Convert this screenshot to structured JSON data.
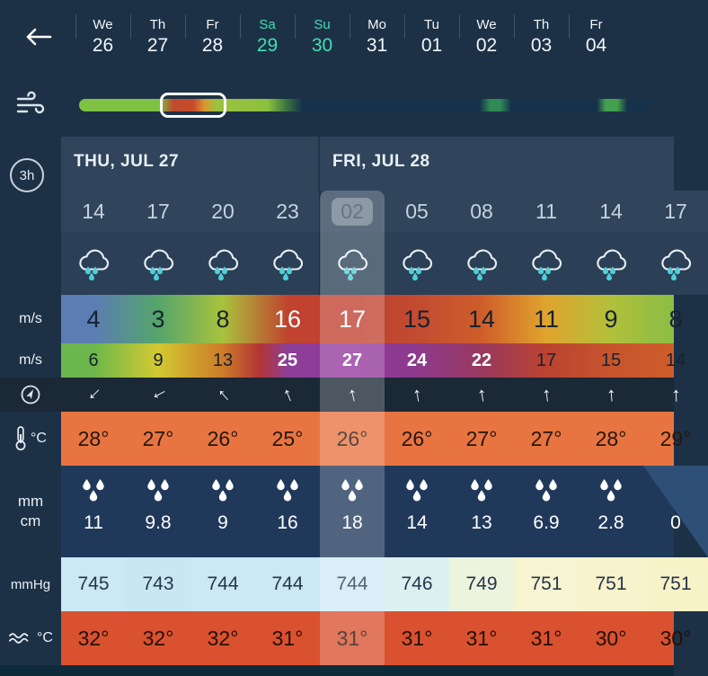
{
  "topbar": {
    "back_icon": "arrow-left",
    "days": [
      {
        "day": "We",
        "date": "26",
        "weekend": false
      },
      {
        "day": "Th",
        "date": "27",
        "weekend": false
      },
      {
        "day": "Fr",
        "date": "28",
        "weekend": false
      },
      {
        "day": "Sa",
        "date": "29",
        "weekend": true
      },
      {
        "day": "Su",
        "date": "30",
        "weekend": true
      },
      {
        "day": "Mo",
        "date": "31",
        "weekend": false
      },
      {
        "day": "Tu",
        "date": "01",
        "weekend": false
      },
      {
        "day": "We",
        "date": "02",
        "weekend": false
      },
      {
        "day": "Th",
        "date": "03",
        "weekend": false
      },
      {
        "day": "Fr",
        "date": "04",
        "weekend": false
      }
    ]
  },
  "icons": {
    "wind": "wind-gust-icon",
    "weather": "cloud-rain-icon",
    "precip": "raindrops-icon",
    "direction": "compass-icon",
    "temperature": "thermometer-icon",
    "water": "waves-icon",
    "arrow_glyph": "↑"
  },
  "table": {
    "interval": "3h",
    "groups": [
      {
        "title": "THU, JUL 27",
        "span": 4
      },
      {
        "title": "FRI, JUL 28",
        "span": 6
      }
    ],
    "row_labels": {
      "speed": "m/s",
      "gust": "m/s",
      "temp": "°C",
      "precip_top": "mm",
      "precip_bottom": "cm",
      "pressure": "mmHg",
      "water": "°C"
    },
    "columns": [
      {
        "time": "14",
        "speed": "4",
        "speed_fg": "#17222e",
        "gust": "6",
        "gust_fg": "#17222e",
        "gust_bold": false,
        "dir_deg": 225,
        "temp": "28°",
        "precip": "11",
        "drops": true,
        "pressure": "745",
        "pressure_bg": "#cbe8f3",
        "water": "32°",
        "highlighted": false,
        "partial": false,
        "diagonal": false
      },
      {
        "time": "17",
        "speed": "3",
        "speed_fg": "#17222e",
        "gust": "9",
        "gust_fg": "#17222e",
        "gust_bold": false,
        "dir_deg": 242,
        "temp": "27°",
        "precip": "9.8",
        "drops": true,
        "pressure": "743",
        "pressure_bg": "#c8e7f2",
        "water": "32°",
        "highlighted": false,
        "partial": false,
        "diagonal": false
      },
      {
        "time": "20",
        "speed": "8",
        "speed_fg": "#17222e",
        "gust": "13",
        "gust_fg": "#17222e",
        "gust_bold": false,
        "dir_deg": 318,
        "temp": "26°",
        "precip": "9",
        "drops": true,
        "pressure": "744",
        "pressure_bg": "#cbe8f3",
        "water": "32°",
        "highlighted": false,
        "partial": false,
        "diagonal": false
      },
      {
        "time": "23",
        "speed": "16",
        "speed_fg": "#ffffff",
        "gust": "25",
        "gust_fg": "#ffffff",
        "gust_bold": true,
        "dir_deg": 338,
        "temp": "25°",
        "precip": "16",
        "drops": true,
        "pressure": "744",
        "pressure_bg": "#cbe8f3",
        "water": "31°",
        "highlighted": false,
        "partial": false,
        "diagonal": false
      },
      {
        "time": "02",
        "speed": "17",
        "speed_fg": "#ffffff",
        "gust": "27",
        "gust_fg": "#ffffff",
        "gust_bold": true,
        "dir_deg": 347,
        "temp": "26°",
        "precip": "18",
        "drops": true,
        "pressure": "744",
        "pressure_bg": "#cfeaf4",
        "water": "31°",
        "highlighted": true,
        "partial": false,
        "diagonal": false
      },
      {
        "time": "05",
        "speed": "15",
        "speed_fg": "#17222e",
        "gust": "24",
        "gust_fg": "#ffffff",
        "gust_bold": true,
        "dir_deg": 350,
        "temp": "26°",
        "precip": "14",
        "drops": true,
        "pressure": "746",
        "pressure_bg": "#ddf0f0",
        "water": "31°",
        "highlighted": false,
        "partial": false,
        "diagonal": false
      },
      {
        "time": "08",
        "speed": "14",
        "speed_fg": "#17222e",
        "gust": "22",
        "gust_fg": "#ffffff",
        "gust_bold": true,
        "dir_deg": 351,
        "temp": "27°",
        "precip": "13",
        "drops": true,
        "pressure": "749",
        "pressure_bg": "#ecf4dd",
        "water": "31°",
        "highlighted": false,
        "partial": false,
        "diagonal": false
      },
      {
        "time": "11",
        "speed": "11",
        "speed_fg": "#17222e",
        "gust": "17",
        "gust_fg": "#17222e",
        "gust_bold": false,
        "dir_deg": 353,
        "temp": "27°",
        "precip": "6.9",
        "drops": true,
        "pressure": "751",
        "pressure_bg": "#f7f4d2",
        "water": "31°",
        "highlighted": false,
        "partial": false,
        "diagonal": false
      },
      {
        "time": "14",
        "speed": "9",
        "speed_fg": "#17222e",
        "gust": "15",
        "gust_fg": "#17222e",
        "gust_bold": false,
        "dir_deg": 356,
        "temp": "28°",
        "precip": "2.8",
        "drops": true,
        "pressure": "751",
        "pressure_bg": "#f8f3cc",
        "water": "30°",
        "highlighted": false,
        "partial": false,
        "diagonal": false
      },
      {
        "time": "17",
        "speed": "8",
        "speed_fg": "#17222e",
        "gust": "14",
        "gust_fg": "#17222e",
        "gust_bold": false,
        "dir_deg": 358,
        "temp": "29°",
        "precip": "0",
        "drops": false,
        "pressure": "751",
        "pressure_bg": "#f8f2c8",
        "water": "30°",
        "highlighted": false,
        "partial": true,
        "diagonal": true
      }
    ]
  },
  "colors": {
    "bg": "#1d3146",
    "header": "#30455b",
    "icon_row": "#2b4056",
    "dir_row": "#1b2836",
    "temp_row": "#e87441",
    "precip_row": "#20395b",
    "water_row": "#d9512f",
    "bottom_strip": "#0d2b3a",
    "weekend_accent": "#41dfb2",
    "highlight": "rgba(255,255,255,0.22)",
    "speed_gradient": "linear-gradient(90deg,#5b7db3 0%,#5b7db3 5.3%,#54a56b 15.8%,#a9c23c 26.4%,#c0432f 37%,#bf4030 47.5%,#c24b31 58.1%,#cf5d2a 68.6%,#e0a42e 79.2%,#b2c03a 89.7%,#8abd45 100%)",
    "gust_gradient": "linear-gradient(90deg,#6cb74b 0%,#6cb74b 5.3%,#d2c932 15.8%,#cc7c28 26.4%,#b23436 32.5%,#8c3f97 37%,#93379e 47.5%,#8c3a8c 58.1%,#99395f 68.6%,#bb4330 79.2%,#c6552d 89.7%,#cf5c2b 100%)",
    "timeline_gradient": "linear-gradient(90deg,#7fc143 0%,#7fc143 14%,#bf4a2e 16.5%,#c84b2c 20%,#d99a30 22%,#9cc23e 24%,#8cc03f 33%,#3e7a3f 36%,#15324a 39%,#15324a 70%,#2f8a55 71.8%,#2f8a55 73.6%,#15324a 75.5%,#15324a 90.5%,#44a04f 92%,#44a04f 94%,#15324a 95.8%,#15324a 100%)"
  }
}
